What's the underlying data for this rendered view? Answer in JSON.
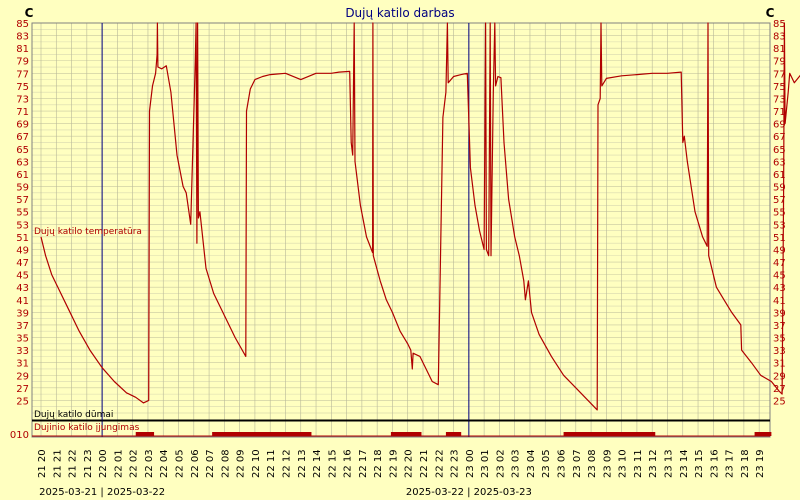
{
  "chart_data": {
    "type": "line",
    "title": "Dujų katilo darbas",
    "y_unit": "C",
    "ylim": [
      23,
      85
    ],
    "yticks": [
      25,
      27,
      29,
      31,
      33,
      35,
      37,
      39,
      41,
      43,
      45,
      47,
      49,
      51,
      53,
      55,
      57,
      59,
      61,
      63,
      65,
      67,
      69,
      71,
      73,
      75,
      77,
      79,
      81,
      83,
      85
    ],
    "x_range_hours": [
      0,
      47
    ],
    "hour_labels": [
      "21 20",
      "21 21",
      "21 22",
      "21 23",
      "22 00",
      "22 01",
      "22 02",
      "22 03",
      "22 04",
      "22 05",
      "22 06",
      "22 07",
      "22 08",
      "22 09",
      "22 10",
      "22 11",
      "22 12",
      "22 13",
      "22 14",
      "22 15",
      "22 16",
      "22 17",
      "22 18",
      "22 19",
      "22 20",
      "22 21",
      "22 22",
      "22 23",
      "23 00",
      "23 01",
      "23 02",
      "23 03",
      "23 04",
      "23 05",
      "23 06",
      "23 07",
      "23 08",
      "23 09",
      "23 10",
      "23 11",
      "23 12",
      "23 13",
      "23 14",
      "23 15",
      "23 16",
      "23 17",
      "23 18",
      "23 19"
    ],
    "date_labels": [
      {
        "text": "2025-03-21 | 2025-03-22",
        "at_hour": 4
      },
      {
        "text": "2025-03-22 | 2025-03-23",
        "at_hour": 28
      }
    ],
    "day_separators_hours": [
      4,
      28
    ],
    "series": [
      {
        "name": "Dujų katilo temperatūra",
        "color": "#b00000",
        "points": [
          [
            0,
            51
          ],
          [
            0.3,
            48
          ],
          [
            0.7,
            45
          ],
          [
            1.2,
            42.5
          ],
          [
            1.8,
            39.5
          ],
          [
            2.5,
            36
          ],
          [
            3.2,
            33
          ],
          [
            4,
            30.2
          ],
          [
            4.8,
            28
          ],
          [
            5.6,
            26.2
          ],
          [
            6.2,
            25.5
          ],
          [
            6.7,
            24.6
          ],
          [
            7.05,
            25
          ],
          [
            7.1,
            71
          ],
          [
            7.3,
            75
          ],
          [
            7.5,
            77
          ],
          [
            7.6,
            80
          ],
          [
            7.62,
            85
          ],
          [
            7.65,
            78
          ],
          [
            7.9,
            77.7
          ],
          [
            8.2,
            78.2
          ],
          [
            8.5,
            74
          ],
          [
            8.9,
            64
          ],
          [
            9.3,
            59
          ],
          [
            9.5,
            58
          ],
          [
            9.8,
            53
          ],
          [
            10.1,
            79
          ],
          [
            10.15,
            85
          ],
          [
            10.2,
            50
          ],
          [
            10.25,
            85
          ],
          [
            10.3,
            54
          ],
          [
            10.4,
            55
          ],
          [
            10.8,
            46
          ],
          [
            11.3,
            42
          ],
          [
            12,
            38.5
          ],
          [
            12.7,
            35
          ],
          [
            13.4,
            32
          ],
          [
            13.45,
            71
          ],
          [
            13.7,
            74.5
          ],
          [
            14,
            76
          ],
          [
            14.5,
            76.5
          ],
          [
            15,
            76.8
          ],
          [
            16,
            77
          ],
          [
            17,
            76
          ],
          [
            18,
            77
          ],
          [
            19,
            77
          ],
          [
            19.5,
            77.2
          ],
          [
            20.2,
            77.3
          ],
          [
            20.3,
            66
          ],
          [
            20.4,
            64
          ],
          [
            20.5,
            85
          ],
          [
            20.55,
            63
          ],
          [
            20.9,
            56
          ],
          [
            21.3,
            51
          ],
          [
            21.7,
            48.5
          ],
          [
            21.72,
            85
          ],
          [
            21.75,
            48
          ],
          [
            22.2,
            44
          ],
          [
            22.6,
            41
          ],
          [
            23,
            39
          ],
          [
            23.5,
            36
          ],
          [
            24,
            34
          ],
          [
            24.2,
            33
          ],
          [
            24.3,
            30
          ],
          [
            24.35,
            32.5
          ],
          [
            24.8,
            32
          ],
          [
            25.2,
            30
          ],
          [
            25.6,
            28
          ],
          [
            26,
            27.5
          ],
          [
            26.3,
            70
          ],
          [
            26.5,
            74
          ],
          [
            26.6,
            85
          ],
          [
            26.65,
            75.5
          ],
          [
            27,
            76.5
          ],
          [
            27.5,
            76.8
          ],
          [
            27.9,
            77
          ],
          [
            28.1,
            62
          ],
          [
            28.4,
            56
          ],
          [
            28.7,
            52
          ],
          [
            29,
            49
          ],
          [
            29.1,
            85
          ],
          [
            29.15,
            49
          ],
          [
            29.3,
            48
          ],
          [
            29.4,
            85
          ],
          [
            29.45,
            48
          ],
          [
            29.6,
            74
          ],
          [
            29.7,
            85
          ],
          [
            29.75,
            75
          ],
          [
            29.9,
            76.5
          ],
          [
            30.1,
            76.3
          ],
          [
            30.3,
            66
          ],
          [
            30.6,
            57
          ],
          [
            31,
            51
          ],
          [
            31.3,
            48
          ],
          [
            31.6,
            44
          ],
          [
            31.7,
            41
          ],
          [
            31.9,
            44
          ],
          [
            32.1,
            39
          ],
          [
            32.6,
            35.5
          ],
          [
            33.4,
            32
          ],
          [
            34.2,
            29
          ],
          [
            35,
            27
          ],
          [
            35.8,
            25
          ],
          [
            36.4,
            23.5
          ],
          [
            36.45,
            72
          ],
          [
            36.6,
            73
          ],
          [
            36.65,
            85
          ],
          [
            36.7,
            75
          ],
          [
            37,
            76.2
          ],
          [
            38,
            76.6
          ],
          [
            39,
            76.8
          ],
          [
            40,
            77
          ],
          [
            41,
            77
          ],
          [
            41.9,
            77.2
          ],
          [
            42,
            66
          ],
          [
            42.1,
            67
          ],
          [
            42.3,
            63
          ],
          [
            42.8,
            55
          ],
          [
            43.3,
            51
          ],
          [
            43.6,
            49.5
          ],
          [
            43.65,
            85
          ],
          [
            43.7,
            48
          ],
          [
            44.2,
            43
          ],
          [
            44.7,
            41
          ],
          [
            45.2,
            39
          ],
          [
            45.8,
            37
          ],
          [
            45.85,
            33
          ],
          [
            46.5,
            31
          ],
          [
            47.1,
            29
          ],
          [
            47.8,
            28
          ],
          [
            48.3,
            26.5
          ],
          [
            48.5,
            26
          ],
          [
            48.6,
            58
          ],
          [
            48.65,
            85
          ],
          [
            48.7,
            69
          ],
          [
            48.9,
            74
          ],
          [
            49,
            77
          ],
          [
            49.3,
            75.5
          ],
          [
            49.7,
            76.7
          ]
        ]
      }
    ],
    "burner_series": {
      "name": "Dujų katilo dūmai",
      "color": "#000000",
      "baseline": "0"
    },
    "ignition_series": {
      "name": "Dujinio katilo įjungimas",
      "color": "#b00000",
      "baseline_label": "010",
      "on_intervals_hours": [
        [
          6.2,
          7.4
        ],
        [
          11.2,
          17.7
        ],
        [
          22.9,
          24.9
        ],
        [
          26.5,
          27.5
        ],
        [
          34.2,
          40.2
        ],
        [
          46.7,
          47.8
        ]
      ]
    },
    "grid": true
  }
}
